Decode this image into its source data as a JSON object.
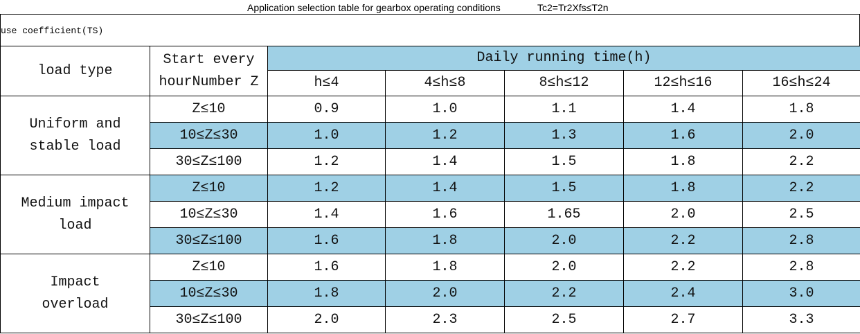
{
  "header": {
    "title": "Application selection table for gearbox operating conditions",
    "formula": "Tc2=Tr2Xfs≤T2n"
  },
  "subtitle": "use coefficient(TS)",
  "table": {
    "columns": {
      "load_type": "load type",
      "starts": "Start every hourNumber Z",
      "running_time": "Daily running time(h)",
      "ranges": [
        "h≤4",
        "4≤h≤8",
        "8≤h≤12",
        "12≤h≤16",
        "16≤h≤24"
      ]
    },
    "groups": [
      {
        "load_type": "Uniform and stable load",
        "rows": [
          {
            "starts": "Z≤10",
            "values": [
              "0.9",
              "1.0",
              "1.1",
              "1.4",
              "1.8"
            ]
          },
          {
            "starts": "10≤Z≤30",
            "values": [
              "1.0",
              "1.2",
              "1.3",
              "1.6",
              "2.0"
            ]
          },
          {
            "starts": "30≤Z≤100",
            "values": [
              "1.2",
              "1.4",
              "1.5",
              "1.8",
              "2.2"
            ]
          }
        ]
      },
      {
        "load_type": "Medium impact load",
        "rows": [
          {
            "starts": "Z≤10",
            "values": [
              "1.2",
              "1.4",
              "1.5",
              "1.8",
              "2.2"
            ]
          },
          {
            "starts": "10≤Z≤30",
            "values": [
              "1.4",
              "1.6",
              "1.65",
              "2.0",
              "2.5"
            ]
          },
          {
            "starts": "30≤Z≤100",
            "values": [
              "1.6",
              "1.8",
              "2.0",
              "2.2",
              "2.8"
            ]
          }
        ]
      },
      {
        "load_type": "Impact overload",
        "rows": [
          {
            "starts": "Z≤10",
            "values": [
              "1.6",
              "1.8",
              "2.0",
              "2.2",
              "2.8"
            ]
          },
          {
            "starts": "10≤Z≤30",
            "values": [
              "1.8",
              "2.0",
              "2.2",
              "2.4",
              "3.0"
            ]
          },
          {
            "starts": "30≤Z≤100",
            "values": [
              "2.0",
              "2.3",
              "2.5",
              "2.7",
              "3.3"
            ]
          }
        ]
      }
    ]
  }
}
